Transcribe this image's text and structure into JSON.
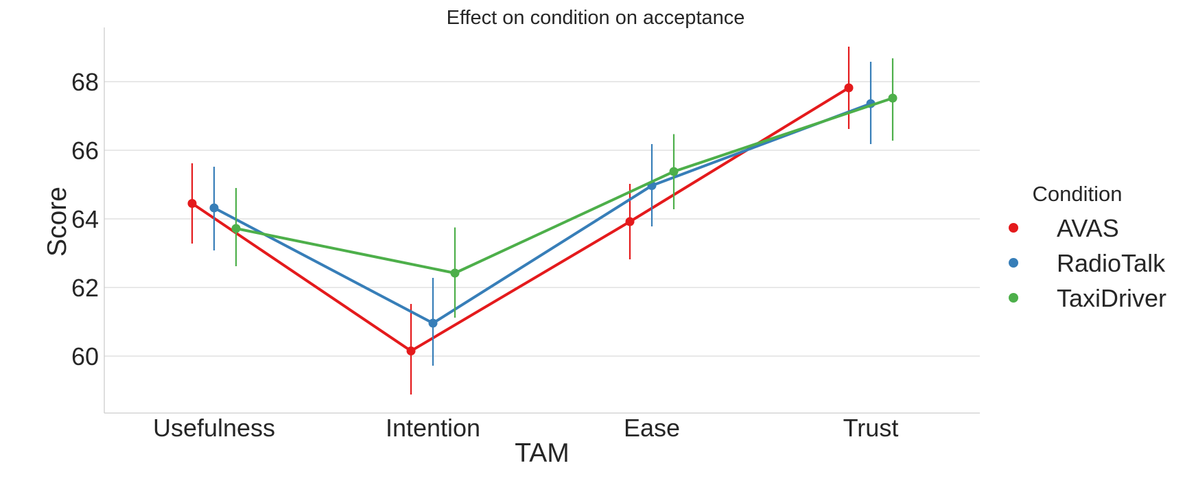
{
  "chart_data": {
    "type": "line",
    "title": "Effect on condition on acceptance",
    "xlabel": "TAM",
    "ylabel": "Score",
    "categories": [
      "Usefulness",
      "Intention",
      "Ease",
      "Trust"
    ],
    "ylim": [
      58.4,
      69.6
    ],
    "yticks": [
      60,
      62,
      64,
      66,
      68
    ],
    "grid": "horizontal",
    "legend_title": "Condition",
    "legend_placement": "right",
    "series": [
      {
        "name": "AVAS",
        "color": "#e41a1c",
        "values": [
          64.45,
          60.15,
          63.92,
          67.82
        ],
        "err_low": [
          63.28,
          58.88,
          62.82,
          66.62
        ],
        "err_high": [
          65.62,
          61.52,
          65.02,
          69.02
        ]
      },
      {
        "name": "RadioTalk",
        "color": "#377eb8",
        "values": [
          64.32,
          60.96,
          64.97,
          67.36
        ],
        "err_low": [
          63.08,
          59.72,
          63.78,
          66.18
        ],
        "err_high": [
          65.52,
          62.28,
          66.18,
          68.58
        ]
      },
      {
        "name": "TaxiDriver",
        "color": "#4daf4a",
        "values": [
          63.72,
          62.42,
          65.38,
          67.52
        ],
        "err_low": [
          62.62,
          61.12,
          64.28,
          66.28
        ],
        "err_high": [
          64.9,
          63.75,
          66.47,
          68.68
        ]
      }
    ]
  }
}
